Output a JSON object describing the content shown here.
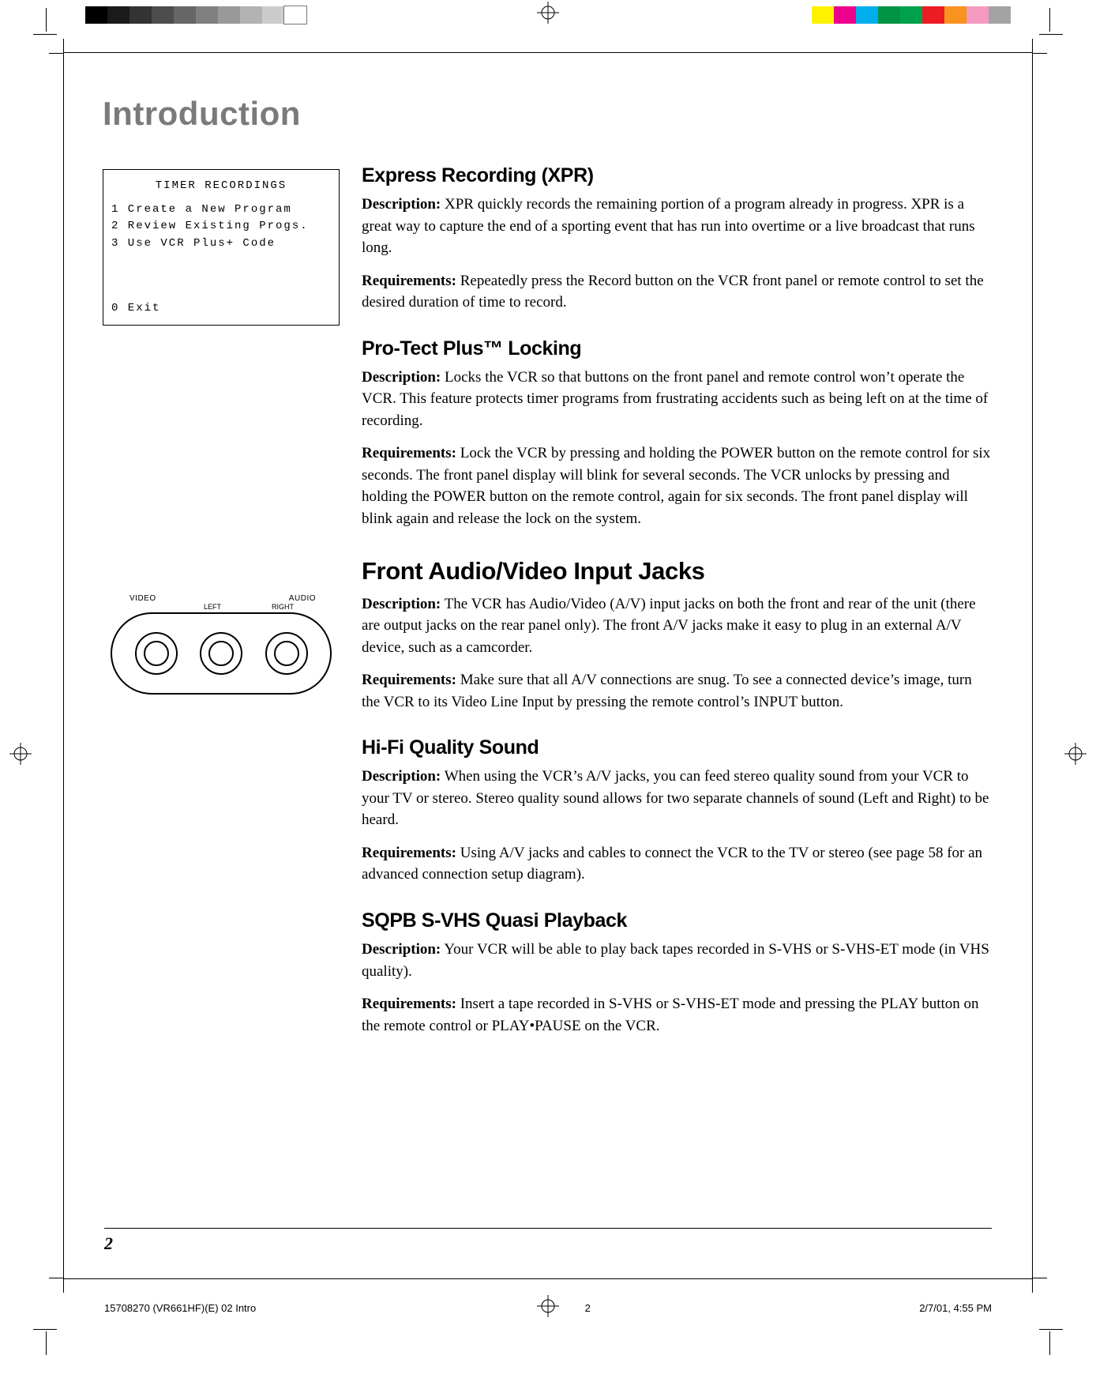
{
  "calibration": {
    "gray_left": [
      "#000000",
      "#1a1a1a",
      "#333333",
      "#4d4d4d",
      "#666666",
      "#808080",
      "#999999",
      "#b3b3b3",
      "#cccccc",
      "#ffffff"
    ],
    "color_right": [
      "#fff200",
      "#ec008c",
      "#00aeef",
      "#009444",
      "#00a14b",
      "#ed1c24",
      "#f7941e",
      "#f49ac1",
      "#a3a3a3"
    ]
  },
  "page_title": "Introduction",
  "menu": {
    "title": "TIMER RECORDINGS",
    "items": [
      "1 Create a New Program",
      "2 Review Existing Progs.",
      "3 Use VCR Plus+ Code"
    ],
    "exit": "0 Exit"
  },
  "jack_labels": {
    "video": "VIDEO",
    "audio": "AUDIO",
    "left": "LEFT",
    "right": "RIGHT"
  },
  "sections": {
    "xpr": {
      "title": "Express Recording (XPR)",
      "desc_lead": "Description:",
      "desc": "XPR quickly records the remaining portion of a program already in progress. XPR is a great way to capture the end of a sporting event that has run into overtime or a live broadcast that runs long.",
      "req_lead": "Requirements:",
      "req": "Repeatedly press the Record button on the VCR front panel or remote control to set the desired duration of time to record."
    },
    "protect": {
      "title": "Pro-Tect Plus™  Locking",
      "desc_lead": "Description:",
      "desc": "Locks the VCR so that buttons on the front panel and remote control won’t operate the VCR. This feature protects timer programs from frustrating accidents such as being left on at the time of recording.",
      "req_lead": "Requirements:",
      "req": "Lock the VCR by pressing and holding the POWER button on the remote control for six seconds. The front panel display will blink for several seconds. The VCR unlocks by pressing and holding the POWER button on the remote control, again for six seconds. The front panel display will blink again and release the lock on the system."
    },
    "jacks": {
      "title": "Front Audio/Video Input Jacks",
      "desc_lead": "Description:",
      "desc": "The VCR has Audio/Video (A/V) input jacks on both the front and rear of the unit (there are output jacks on the rear panel only). The front A/V jacks make it easy to plug in an external A/V device, such as a camcorder.",
      "req_lead": "Requirements:",
      "req": "Make sure that all A/V connections are snug. To see a connected device’s image, turn the VCR to its Video Line Input by pressing the remote control’s INPUT button."
    },
    "hifi": {
      "title": "Hi-Fi Quality Sound",
      "desc_lead": "Description:",
      "desc": "When using the VCR’s A/V jacks, you can feed stereo quality sound from your VCR to your TV or stereo. Stereo quality sound allows for two separate channels of sound (Left and Right) to be heard.",
      "req_lead": "Requirements:",
      "req": "Using A/V jacks and cables to connect the VCR to the TV or stereo (see page 58 for an advanced connection setup diagram)."
    },
    "sqpb": {
      "title": "SQPB S-VHS Quasi Playback",
      "desc_lead": "Description:",
      "desc": "Your VCR will be able to play back tapes recorded in S-VHS or S-VHS-ET mode (in VHS quality).",
      "req_lead": "Requirements:",
      "req": "Insert a tape recorded in S-VHS or S-VHS-ET mode and pressing the PLAY button on the remote control or PLAY•PAUSE on the VCR."
    }
  },
  "page_number": "2",
  "footer": {
    "left": "15708270 (VR661HF)(E) 02 Intro",
    "mid": "2",
    "right": "2/7/01, 4:55 PM"
  }
}
